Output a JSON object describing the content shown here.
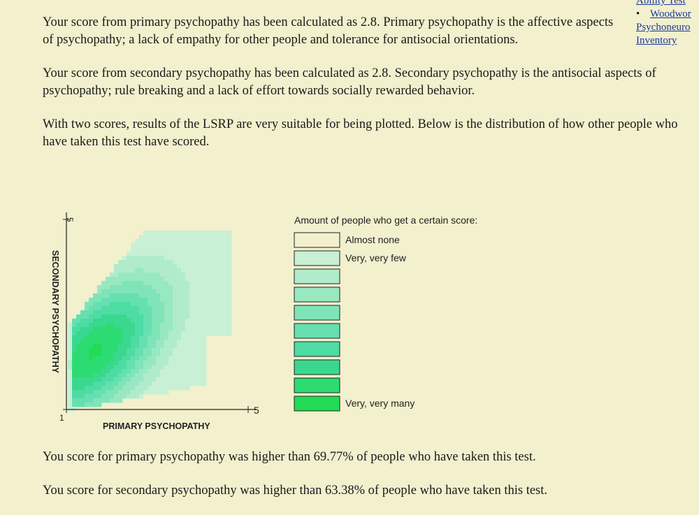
{
  "sidebar": {
    "link1": "Ability Test",
    "bullet": "•",
    "link2_part1": "Woodwor",
    "link2_part2": "Psychoneuro",
    "link2_part3": "Inventory"
  },
  "intro": {
    "primary": "Your score from primary psychopathy has been calculated as 2.8. Primary psychopathy is the affective aspects of psychopathy; a lack of empathy for other people and tolerance for antisocial orientations.",
    "secondary": "Your score from secondary psychopathy has been calculated as 2.8. Secondary psychopathy is the antisocial aspects of psychopathy; rule breaking and a lack of effort towards socially rewarded behavior.",
    "plot_text": "With two scores, results of the LSRP are very suitable for being plotted. Below is the distribution of how other people who have taken this test have scored."
  },
  "chart_data": {
    "type": "heatmap",
    "xlabel": "PRIMARY PSYCHOPATHY",
    "ylabel": "SECONDARY PSYCHOPATHY",
    "xlim": [
      1,
      5
    ],
    "ylim": [
      1,
      5
    ],
    "x_tick_labels": [
      "1",
      "5"
    ],
    "y_tick_labels": [
      "1",
      "5"
    ],
    "peak": {
      "x": 1.6,
      "y": 2.2
    },
    "colors": [
      "#f2f0cd",
      "#c8f0d4",
      "#b0eccb",
      "#98e8c2",
      "#80e4b9",
      "#66e0b0",
      "#4ddca4",
      "#3ad88f",
      "#2cdc73",
      "#22dc55"
    ]
  },
  "legend": {
    "title": "Amount of people who get a certain score:",
    "levels": [
      {
        "label": "Almost none",
        "color": "#f2f0cd"
      },
      {
        "label": "Very, very few",
        "color": "#c8f0d4"
      },
      {
        "label": "",
        "color": "#b0eccb"
      },
      {
        "label": "",
        "color": "#98e8c2"
      },
      {
        "label": "",
        "color": "#80e4b9"
      },
      {
        "label": "",
        "color": "#66e0b0"
      },
      {
        "label": "",
        "color": "#4ddca4"
      },
      {
        "label": "",
        "color": "#3ad88f"
      },
      {
        "label": "",
        "color": "#2cdc73"
      },
      {
        "label": "Very, very many",
        "color": "#22dc55"
      }
    ]
  },
  "results": {
    "primary": "You score for primary psychopathy was higher than 69.77% of people who have taken this test.",
    "secondary": "You score for secondary psychopathy was higher than 63.38% of people who have taken this test."
  }
}
